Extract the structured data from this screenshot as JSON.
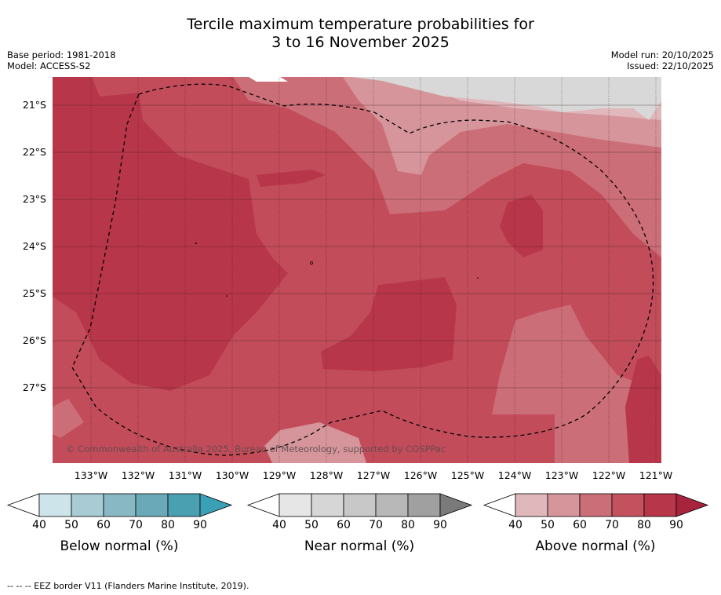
{
  "title_line1": "Tercile maximum temperature probabilities for",
  "title_line2": "3 to 16 November 2025",
  "meta": {
    "base_period": "Base period: 1981-2018",
    "model": "Model: ACCESS-S2",
    "model_run": "Model run: 20/10/2025",
    "issued": "Issued: 22/10/2025"
  },
  "lat_labels": [
    "21°S",
    "22°S",
    "23°S",
    "24°S",
    "25°S",
    "26°S",
    "27°S"
  ],
  "lon_labels": [
    "133°W",
    "132°W",
    "131°W",
    "130°W",
    "129°W",
    "128°W",
    "127°W",
    "126°W",
    "125°W",
    "124°W",
    "123°W",
    "122°W",
    "121°W"
  ],
  "copyright": "© Commonwealth of Australia 2025, Bureau of Meteorology, supported by COSPPac",
  "colorbars": [
    {
      "title": "Below normal (%)",
      "ticks": [
        "40",
        "50",
        "60",
        "70",
        "80",
        "90"
      ],
      "colors": [
        "#cde4ea",
        "#a8cbd4",
        "#89b8c5",
        "#6aa9b8",
        "#4a9fb0",
        "#3aa0b5"
      ]
    },
    {
      "title": "Near normal (%)",
      "ticks": [
        "40",
        "50",
        "60",
        "70",
        "80",
        "90"
      ],
      "colors": [
        "#e6e6e6",
        "#d6d6d6",
        "#c8c8c8",
        "#b8b8b8",
        "#a0a0a0",
        "#7a7a7a"
      ]
    },
    {
      "title": "Above normal (%)",
      "ticks": [
        "40",
        "50",
        "60",
        "70",
        "80",
        "90"
      ],
      "colors": [
        "#e0b8bc",
        "#d5959b",
        "#cc6e78",
        "#c4525e",
        "#b8364a",
        "#a8233c"
      ]
    }
  ],
  "footer": "--  --  -- EEZ border V11 (Flanders Marine Institute, 2019).",
  "colors": {
    "above_50": "#d5959b",
    "above_60": "#cc6e78",
    "above_70": "#c24c5a",
    "above_80": "#b8364a",
    "near_40": "#dcdcdc",
    "near_50": "#e0b8bc"
  }
}
